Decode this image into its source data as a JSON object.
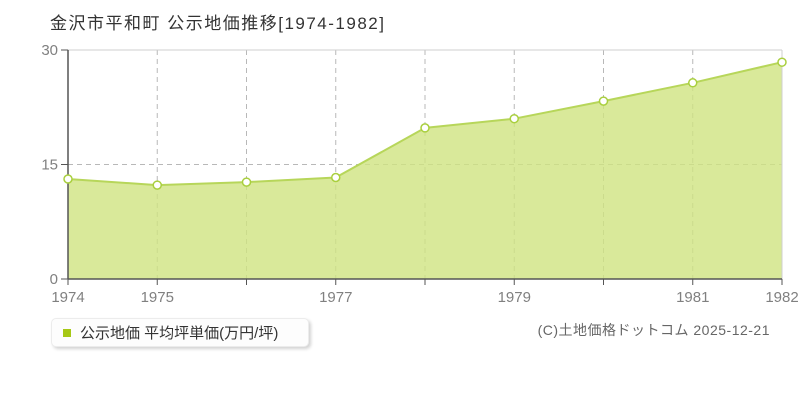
{
  "title": "金沢市平和町 公示地価推移[1974-1982]",
  "legend": {
    "label": "公示地価 平均坪単価(万円/坪)",
    "swatch_color": "#a6c816"
  },
  "footer": {
    "credit": "(C)土地価格ドットコム 2025-12-21"
  },
  "chart_data": {
    "type": "area",
    "title": "金沢市平和町 公示地価推移[1974-1982]",
    "x": [
      1974,
      1975,
      1976,
      1977,
      1978,
      1979,
      1980,
      1981,
      1982
    ],
    "series": [
      {
        "name": "公示地価 平均坪単価(万円/坪)",
        "values": [
          13.1,
          12.3,
          12.7,
          13.3,
          19.8,
          21.0,
          23.3,
          25.7,
          28.4
        ]
      }
    ],
    "xlabel": "",
    "ylabel": "",
    "unit": "万円/坪",
    "ylim": [
      0,
      30
    ],
    "yticks": [
      0,
      15,
      30
    ],
    "xtick_labels": [
      "1974",
      "1975",
      "1977",
      "1979",
      "1981",
      "1982"
    ],
    "grid": "dashed",
    "legend_position": "bottom-left",
    "colors": {
      "area_fill": "#cfe381",
      "area_opacity": 0.8,
      "line": "#b7d65a",
      "marker_fill": "#ffffff",
      "marker_stroke": "#a9cf3e",
      "gridline": "#b8b8b8",
      "plot_border": "#cfcfcf",
      "axis": "#555555",
      "tick_label": "#808080"
    }
  }
}
